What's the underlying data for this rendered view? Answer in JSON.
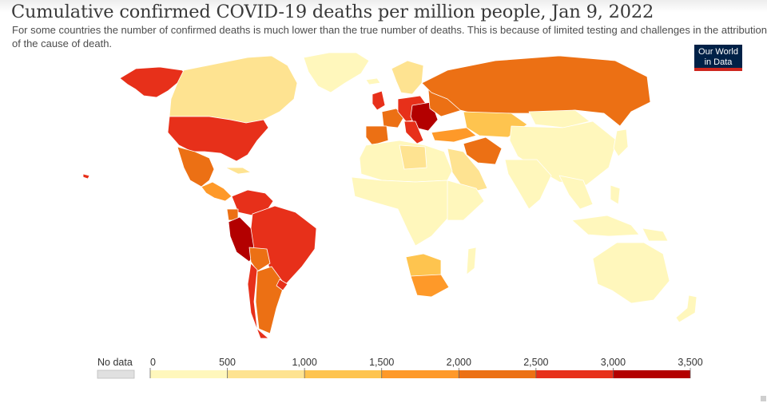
{
  "title": "Cumulative confirmed COVID-19 deaths per million people, Jan 9, 2022",
  "subtitle": "For some countries the number of confirmed deaths is much lower than the true number of deaths. This is because of limited testing and challenges in the attribution of the cause of death.",
  "logo": {
    "line1": "Our World",
    "line2": "in Data"
  },
  "legend": {
    "no_data_label": "No data",
    "no_data_color": "#e0e0e0",
    "ticks": [
      "0",
      "500",
      "1,000",
      "1,500",
      "2,000",
      "2,500",
      "3,000",
      "3,500"
    ],
    "bin_colors": [
      "#fff7bc",
      "#fee391",
      "#fec44f",
      "#fe9929",
      "#ec7014",
      "#e7301a",
      "#b30000"
    ]
  },
  "colors": {
    "ocean": "#ffffff",
    "border": "#ffffff"
  }
}
